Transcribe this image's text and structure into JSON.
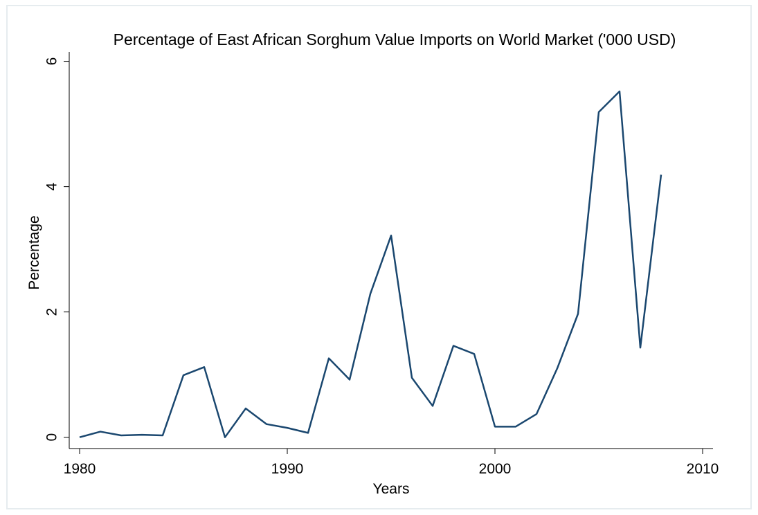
{
  "chart_data": {
    "type": "line",
    "title": "Percentage of East African Sorghum Value Imports on World Market ('000 USD)",
    "x_label": "Years",
    "y_label": "Percentage",
    "x": [
      1980,
      1981,
      1982,
      1983,
      1984,
      1985,
      1986,
      1987,
      1988,
      1989,
      1990,
      1991,
      1992,
      1993,
      1994,
      1995,
      1996,
      1997,
      1998,
      1999,
      2000,
      2001,
      2002,
      2003,
      2004,
      2005,
      2006,
      2007,
      2008
    ],
    "series": [
      {
        "name": "Percentage",
        "color": "#1a476f",
        "values": [
          0,
          0.09,
          0.03,
          0.04,
          0.03,
          0.99,
          1.12,
          0,
          0.46,
          0.21,
          0.15,
          0.07,
          1.26,
          0.92,
          2.29,
          3.22,
          0.95,
          0.5,
          1.46,
          1.33,
          0.17,
          0.17,
          0.37,
          1.1,
          1.97,
          5.19,
          5.52,
          1.43,
          4.19
        ]
      }
    ],
    "xlim": [
      1979.5,
      2010.5
    ],
    "xticks": [
      1980,
      1990,
      2000,
      2010
    ],
    "ylim": [
      -0.18,
      6.15
    ],
    "yticks": [
      0,
      2,
      4,
      6
    ],
    "grid": false
  }
}
